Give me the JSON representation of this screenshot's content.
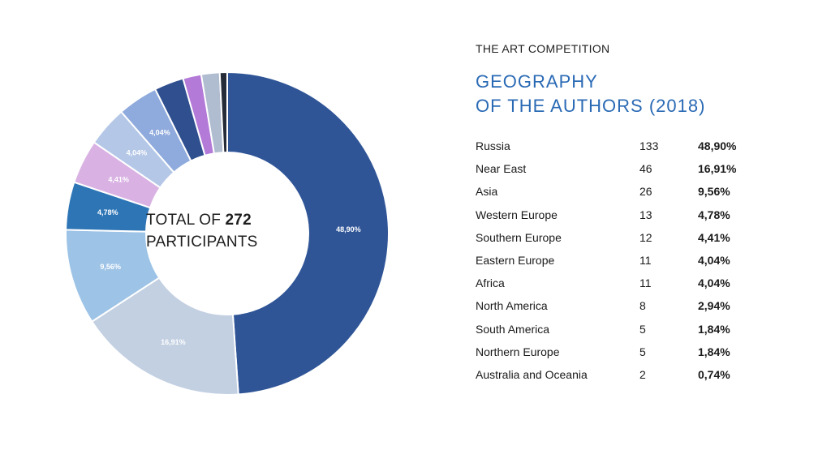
{
  "header": {
    "pre_title": "THE ART COMPETITION",
    "title_line1": "GEOGRAPHY",
    "title_line2": "OF THE AUTHORS (2018)"
  },
  "center": {
    "prefix": "TOTAL OF",
    "total": "272",
    "suffix": "PARTICIPANTS"
  },
  "chart_data": {
    "type": "pie",
    "style": "donut",
    "total": 272,
    "slices": [
      {
        "name": "Russia",
        "count": 133,
        "percent": "48,90%",
        "value": 48.9,
        "color": "#2f5597",
        "label": "48,90%"
      },
      {
        "name": "Near East",
        "count": 46,
        "percent": "16,91%",
        "value": 16.91,
        "color": "#c3d0e2",
        "label": "16,91%"
      },
      {
        "name": "Asia",
        "count": 26,
        "percent": "9,56%",
        "value": 9.56,
        "color": "#9dc3e6",
        "label": "9,56%"
      },
      {
        "name": "Western Europe",
        "count": 13,
        "percent": "4,78%",
        "value": 4.78,
        "color": "#2e75b6",
        "label": "4,78%"
      },
      {
        "name": "Southern Europe",
        "count": 12,
        "percent": "4,41%",
        "value": 4.41,
        "color": "#d9b2e3",
        "label": "4,41%"
      },
      {
        "name": "Eastern Europe",
        "count": 11,
        "percent": "4,04%",
        "value": 4.04,
        "color": "#b4c7e7",
        "label": "4,04%"
      },
      {
        "name": "Africa",
        "count": 11,
        "percent": "4,04%",
        "value": 4.04,
        "color": "#8faadc",
        "label": "4,04%"
      },
      {
        "name": "North America",
        "count": 8,
        "percent": "2,94%",
        "value": 2.94,
        "color": "#2f4f8f",
        "label": ""
      },
      {
        "name": "South America",
        "count": 5,
        "percent": "1,84%",
        "value": 1.84,
        "color": "#b37ad8",
        "label": ""
      },
      {
        "name": "Northern Europe",
        "count": 5,
        "percent": "1,84%",
        "value": 1.84,
        "color": "#b0bccf",
        "label": ""
      },
      {
        "name": "Australia and Oceania",
        "count": 2,
        "percent": "0,74%",
        "value": 0.74,
        "color": "#262b38",
        "label": ""
      }
    ]
  }
}
